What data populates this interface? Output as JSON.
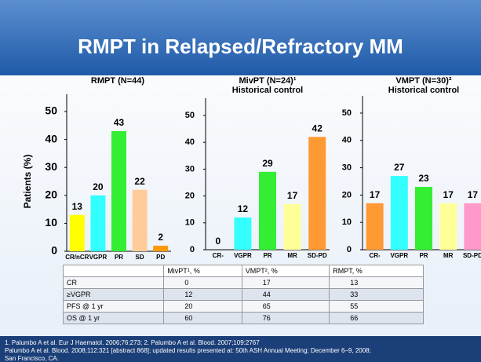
{
  "title": "RMPT in Relapsed/Refractory MM",
  "chart_data": [
    {
      "type": "bar",
      "title": "RMPT (N=44)",
      "y_label": "Patients (%)",
      "categories": [
        "CR/nCR",
        "VGPR",
        "PR",
        "SD",
        "PD"
      ],
      "values": [
        13,
        20,
        43,
        22,
        2
      ],
      "colors": [
        "#ffff00",
        "#33ffff",
        "#33ee33",
        "#ffcc99",
        "#ff9900"
      ],
      "ylim": [
        0,
        50
      ],
      "yticks": [
        0,
        10,
        20,
        30,
        40,
        50
      ]
    },
    {
      "type": "bar",
      "title": "MivPT (N=24)¹",
      "subtitle": "Historical control",
      "categories": [
        "CR-",
        "VGPR",
        "PR",
        "MR",
        "SD-PD"
      ],
      "values": [
        0,
        12,
        29,
        17,
        42
      ],
      "colors": [
        "#ff9933",
        "#33ffff",
        "#33ee33",
        "#ffff99",
        "#ff9933"
      ],
      "ylim": [
        0,
        50
      ],
      "yticks": [
        0,
        10,
        20,
        30,
        40,
        50
      ]
    },
    {
      "type": "bar",
      "title": "VMPT (N=30)²",
      "subtitle": "Historical control",
      "categories": [
        "CR-",
        "VGPR",
        "PR",
        "MR",
        "SD-PD"
      ],
      "values": [
        17,
        27,
        23,
        17,
        17
      ],
      "colors": [
        "#ff9933",
        "#33ffff",
        "#33ee33",
        "#ffff99",
        "#ff99cc"
      ],
      "ylim": [
        0,
        50
      ],
      "yticks": [
        0,
        10,
        20,
        30,
        40,
        50
      ]
    }
  ],
  "table": {
    "header": [
      "",
      "MivPT¹, %",
      "VMPT², %",
      "RMPT, %"
    ],
    "rows": [
      [
        "CR",
        "0",
        "17",
        "13"
      ],
      [
        "≥VGPR",
        "12",
        "44",
        "33"
      ],
      [
        "PFS @ 1 yr",
        "20",
        "65",
        "55"
      ],
      [
        "OS @ 1 yr",
        "60",
        "76",
        "66"
      ]
    ]
  },
  "footnotes": [
    "1. Palumbo A et al. Eur J Haematol. 2006;76:273; 2. Palumbo A et al. Blood. 2007;109:2767",
    "Palumbo A et al. Blood. 2008;112:321 [abstract 868]; updated results presented at: 50th ASH Annual Meeting; December 6–9, 2008;",
    "San Francisco, CA."
  ]
}
